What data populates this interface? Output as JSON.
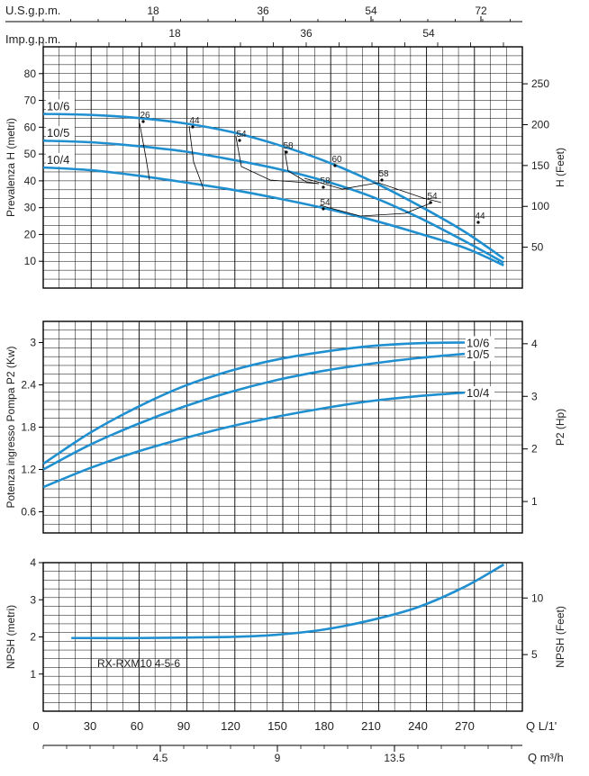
{
  "colors": {
    "curve": "#1f8fd0",
    "grid": "#000000",
    "frame": "#000000",
    "efficiency": "#000000"
  },
  "top_axes": {
    "usgpm_label": "U.S.g.p.m.",
    "usgpm_ticks": [
      "18",
      "36",
      "54",
      "72"
    ],
    "impgpm_label": "Imp.g.p.m.",
    "impgpm_ticks": [
      "18",
      "36",
      "54"
    ]
  },
  "bottom_axes": {
    "q_label": "Q L/1'",
    "q_ticks": [
      "0",
      "30",
      "60",
      "90",
      "120",
      "150",
      "180",
      "210",
      "240",
      "270"
    ],
    "m3h_label": "Q m³/h",
    "m3h_ticks": [
      "4.5",
      "9",
      "13.5"
    ]
  },
  "chart_data": [
    {
      "type": "line",
      "ylabel": "Prevalenza H (metri)",
      "y2label": "H (Feet)",
      "ylim": [
        0,
        90
      ],
      "xlim": [
        0,
        295
      ],
      "y_ticks": [
        "10",
        "20",
        "30",
        "40",
        "50",
        "60",
        "70",
        "80"
      ],
      "y2_ticks": [
        "50",
        "100",
        "150",
        "200",
        "250"
      ],
      "series": [
        {
          "name": "10/6",
          "x": [
            0,
            30,
            60,
            90,
            120,
            150,
            180,
            210,
            240,
            270,
            295
          ],
          "y": [
            65,
            64.6,
            63.5,
            61.5,
            58.3,
            53.5,
            47.5,
            40,
            31,
            21,
            11
          ]
        },
        {
          "name": "10/5",
          "x": [
            0,
            30,
            60,
            90,
            120,
            150,
            180,
            210,
            240,
            270,
            295
          ],
          "y": [
            55,
            54.4,
            53,
            51,
            48,
            44.5,
            40,
            34.2,
            26.5,
            17.5,
            9.5
          ]
        },
        {
          "name": "10/4",
          "x": [
            0,
            30,
            60,
            90,
            120,
            150,
            180,
            210,
            240,
            270,
            295
          ],
          "y": [
            45,
            44,
            42,
            39.5,
            36.8,
            33.5,
            29.8,
            25.5,
            20.5,
            15,
            8.5
          ]
        }
      ],
      "efficiency_labels": [
        "26",
        "44",
        "54",
        "58",
        "60",
        "58",
        "54",
        "44",
        "58",
        "54"
      ]
    },
    {
      "type": "line",
      "ylabel": "Potenza ingresso Pompa P2 (Kw)",
      "y2label": "P2 (Hp)",
      "ylim": [
        0.3,
        3.3
      ],
      "xlim": [
        0,
        295
      ],
      "y_ticks": [
        "0.6",
        "1.2",
        "1.8",
        "2.4",
        "3"
      ],
      "y2_ticks": [
        "1",
        "2",
        "3",
        "4"
      ],
      "series": [
        {
          "name": "10/6",
          "x": [
            0,
            30,
            60,
            90,
            120,
            150,
            180,
            210,
            240,
            270
          ],
          "y": [
            1.28,
            1.72,
            2.08,
            2.38,
            2.6,
            2.76,
            2.87,
            2.95,
            2.99,
            3.0
          ]
        },
        {
          "name": "10/5",
          "x": [
            0,
            30,
            60,
            90,
            120,
            150,
            180,
            210,
            240,
            270
          ],
          "y": [
            1.2,
            1.55,
            1.84,
            2.09,
            2.3,
            2.47,
            2.6,
            2.7,
            2.78,
            2.84
          ]
        },
        {
          "name": "10/4",
          "x": [
            0,
            30,
            60,
            90,
            120,
            150,
            180,
            210,
            240,
            270
          ],
          "y": [
            0.95,
            1.22,
            1.45,
            1.64,
            1.81,
            1.95,
            2.07,
            2.17,
            2.24,
            2.29
          ]
        }
      ]
    },
    {
      "type": "line",
      "ylabel": "NPSH (metri)",
      "y2label": "NPSH (Feet)",
      "ylim": [
        0,
        4
      ],
      "xlim": [
        0,
        295
      ],
      "y_ticks": [
        "1",
        "2",
        "3",
        "4"
      ],
      "y2_ticks": [
        "5",
        "10"
      ],
      "annotation": "RX-RXM10 4-5-6",
      "series": [
        {
          "x": [
            18,
            60,
            120,
            150,
            180,
            210,
            240,
            270,
            295
          ],
          "y": [
            1.97,
            1.97,
            2.0,
            2.06,
            2.2,
            2.45,
            2.8,
            3.35,
            3.95
          ]
        }
      ]
    }
  ]
}
